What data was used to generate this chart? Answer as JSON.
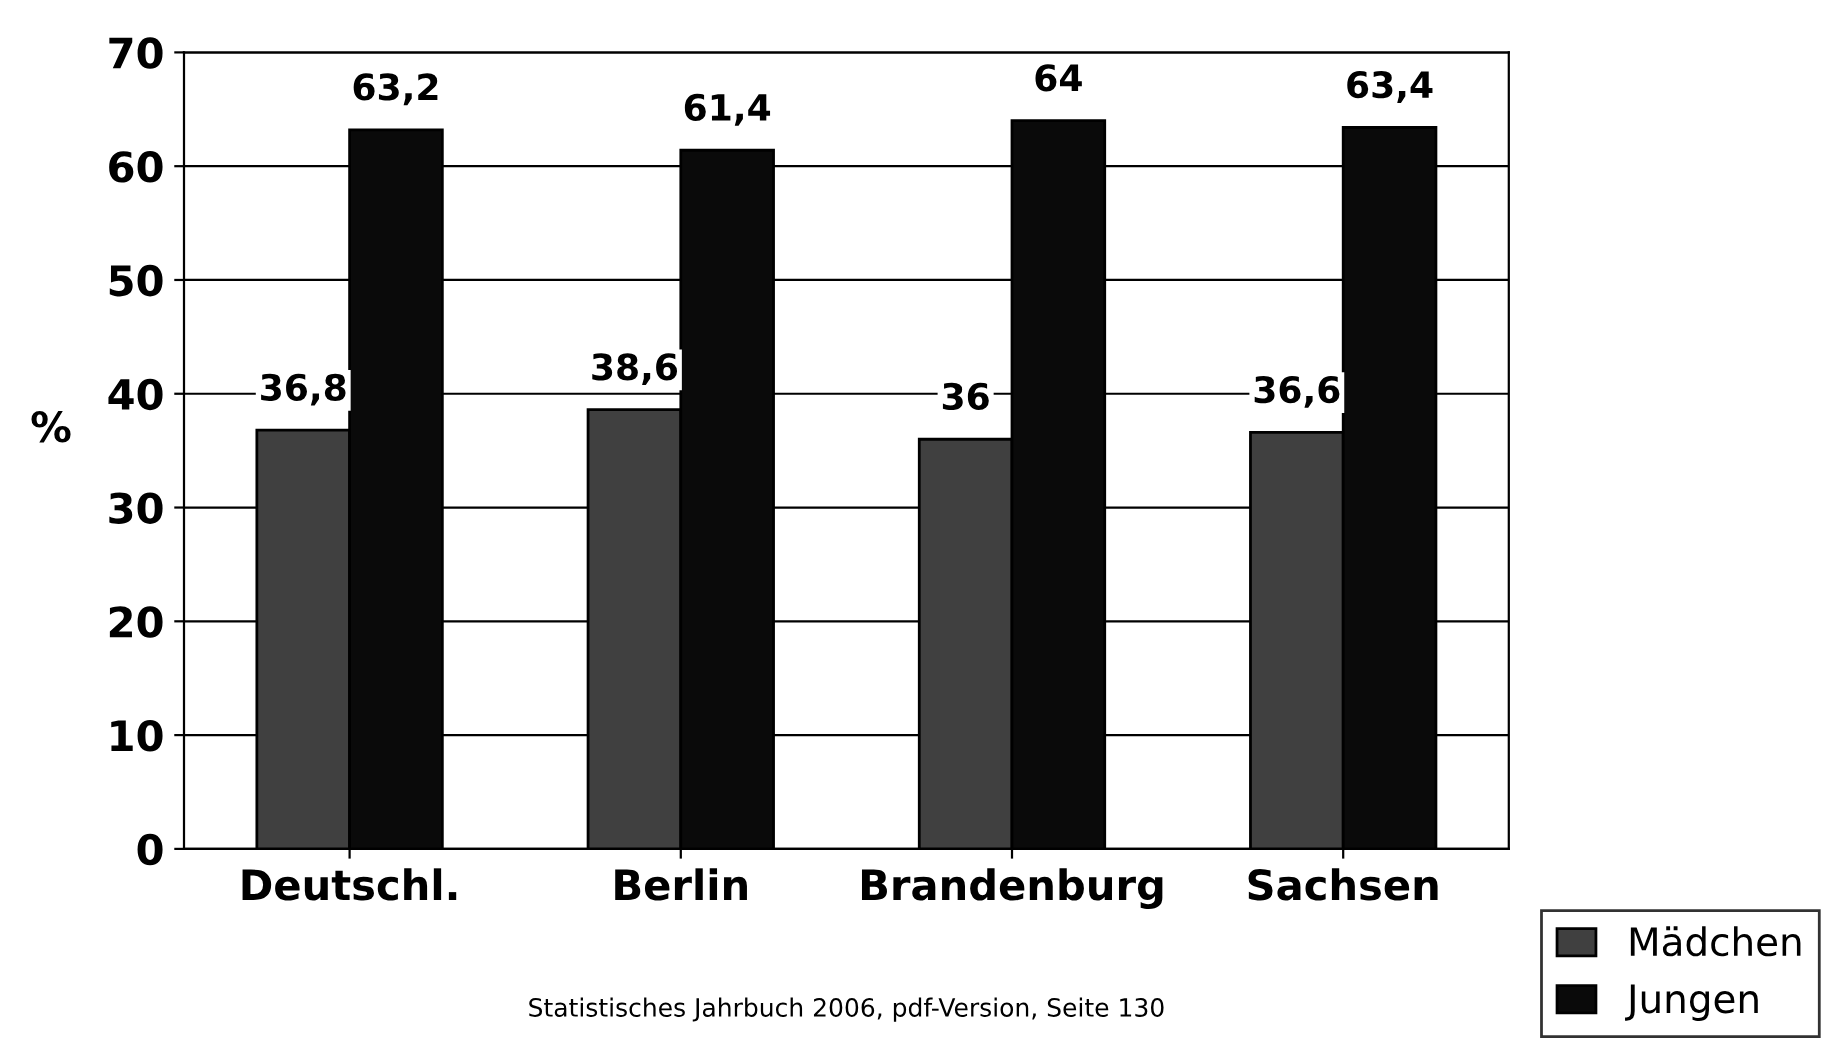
{
  "chart_data": {
    "type": "bar",
    "ylabel": "%",
    "categories": [
      "Deutschl.",
      "Berlin",
      "Brandenburg",
      "Sachsen"
    ],
    "series": [
      {
        "name": "Mädchen",
        "color": "#404040",
        "values": [
          36.8,
          38.6,
          36,
          36.6
        ],
        "value_labels": [
          "36,8",
          "38,6",
          "36",
          "36,6"
        ]
      },
      {
        "name": "Jungen",
        "color": "#0a0a0a",
        "values": [
          63.2,
          61.4,
          64,
          63.4
        ],
        "value_labels": [
          "63,2",
          "61,4",
          "64",
          "63,4"
        ]
      }
    ],
    "ylim": [
      0,
      70
    ],
    "yticks": [
      0,
      10,
      20,
      30,
      40,
      50,
      60,
      70
    ],
    "grid": "y",
    "legend": "bottom right",
    "annotations": [
      "Statistisches Jahrbuch 2006, pdf-Version, Seite 130"
    ]
  }
}
